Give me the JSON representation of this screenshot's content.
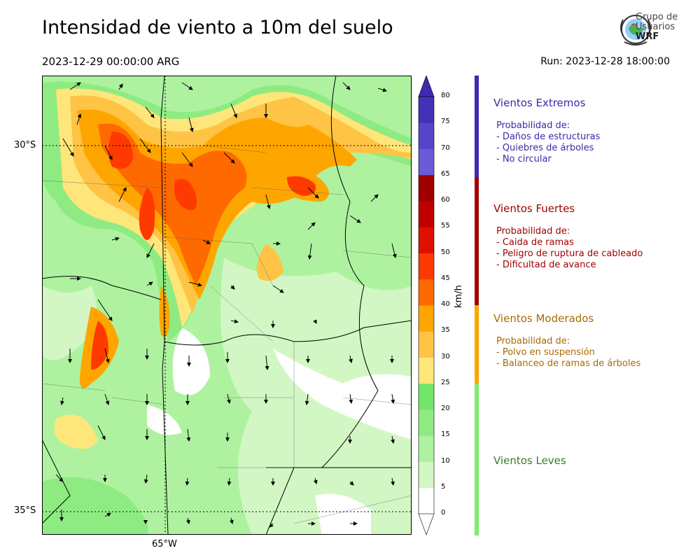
{
  "header": {
    "title": "Intensidad de viento a 10m del suelo",
    "valid_time": "2023-12-29 00:00:00 ARG",
    "run_time": "Run: 2023-12-28 18:00:00",
    "logo_line1": "Grupo de",
    "logo_line2": "Usuarios",
    "logo_line3": "WRF"
  },
  "map": {
    "lat_labels": [
      "30°S",
      "35°S"
    ],
    "lon_labels": [
      "65°W"
    ],
    "legend_unit": "km/h",
    "legend_ticks": [
      "0",
      "5",
      "10",
      "15",
      "20",
      "25",
      "30",
      "35",
      "40",
      "45",
      "50",
      "55",
      "60",
      "65",
      "70",
      "75",
      "80"
    ],
    "legend_colors": [
      "#ffffff",
      "#d2f7c4",
      "#aef2a0",
      "#8eeb82",
      "#72e66a",
      "#ffe67a",
      "#ffc445",
      "#ffa500",
      "#ff6a00",
      "#ff3a00",
      "#e01000",
      "#c00000",
      "#a00000",
      "#6b5bd6",
      "#5545c8",
      "#4232b8"
    ],
    "extend_color": "#3f2bb0"
  },
  "categories": [
    {
      "heading": "Vientos Extremos",
      "color": "#3a2aa8",
      "desc": [
        "Probabilidad de:",
        "- Daños de estructuras",
        "- Quiebres de árboles",
        "- No circular"
      ]
    },
    {
      "heading": "Vientos Fuertes",
      "color": "#a00000",
      "desc": [
        "Probabilidad de:",
        "- Caida de ramas",
        "- Peligro de ruptura de cableado",
        "- Dificultad de avance"
      ]
    },
    {
      "heading": "Vientos Moderados",
      "color": "#a86a00",
      "desc": [
        "Probabilidad de:",
        "- Polvo en suspensión",
        "- Balanceo de ramas de árboles"
      ]
    },
    {
      "heading": "Vientos Leves",
      "color": "#3a7a2a",
      "desc": []
    }
  ],
  "category_bar_colors": [
    "#3f2bb0",
    "#a00000",
    "#ffa500",
    "#7ced6c"
  ]
}
